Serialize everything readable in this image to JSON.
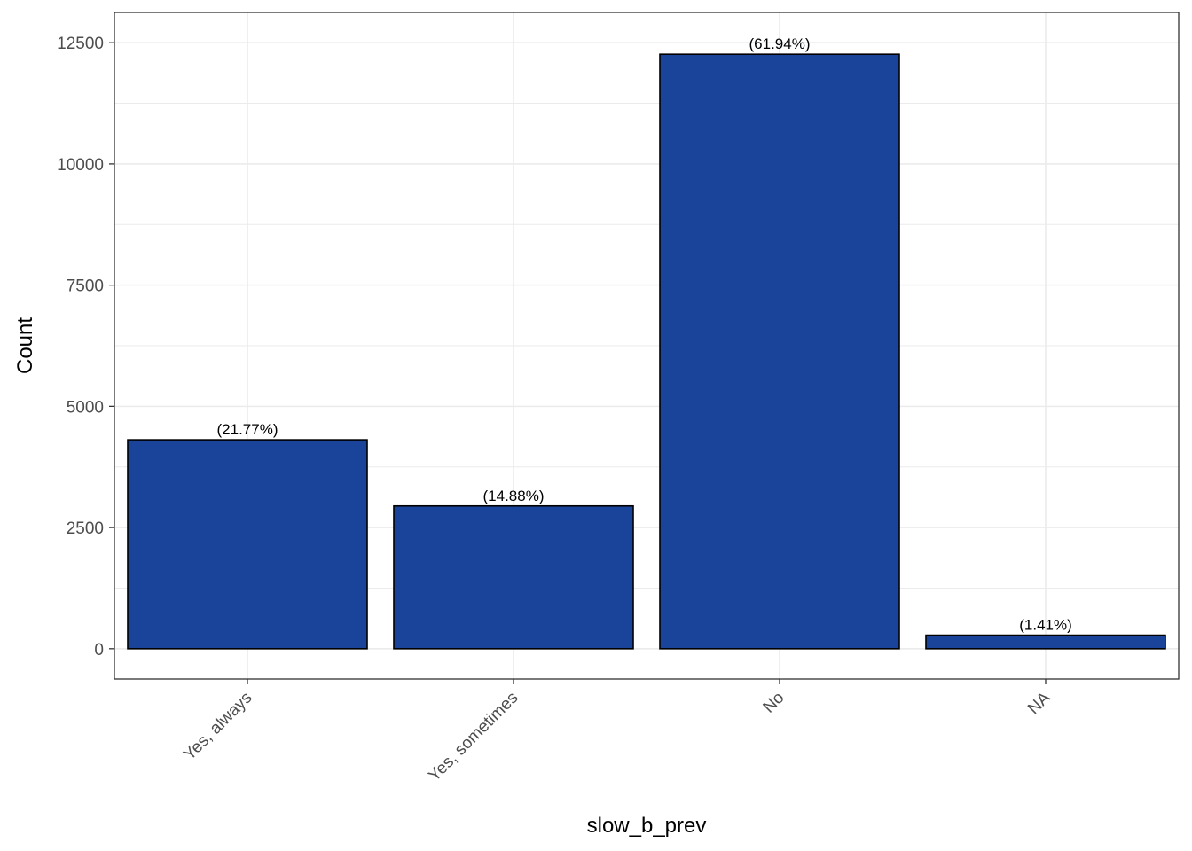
{
  "chart_data": {
    "type": "bar",
    "categories": [
      "Yes, always",
      "Yes, sometimes",
      "No",
      "NA"
    ],
    "values": [
      4310,
      2945,
      12262,
      279
    ],
    "data_labels": [
      "(21.77%)",
      "(14.88%)",
      "(61.94%)",
      "(1.41%)"
    ],
    "title": "",
    "xlabel": "slow_b_prev",
    "ylabel": "Count",
    "ylim": [
      -625,
      13125
    ],
    "y_ticks": [
      0,
      2500,
      5000,
      7500,
      10000,
      12500
    ],
    "y_tick_labels": [
      "0",
      "2500",
      "5000",
      "7500",
      "10000",
      "12500"
    ],
    "y_minor_ticks": [
      1250,
      3750,
      6250,
      8750,
      11250
    ],
    "grid": true,
    "legend": "none",
    "colors": {
      "bar_fill": "#1a4499",
      "bar_stroke": "#000000",
      "grid": "#ebebeb",
      "panel_border": "#333333",
      "tick_text": "#4d4d4d"
    }
  }
}
